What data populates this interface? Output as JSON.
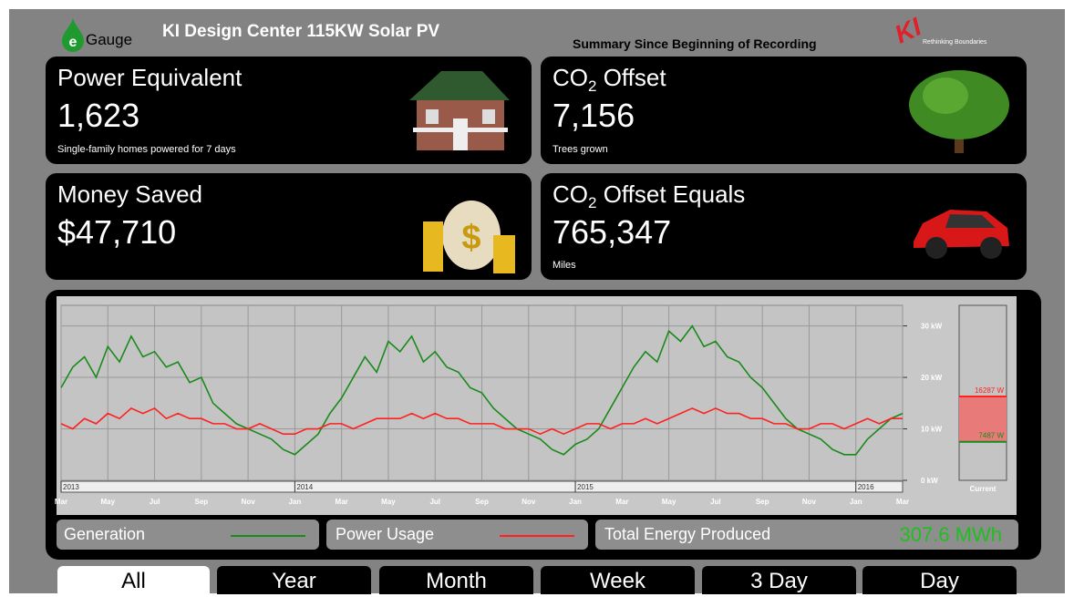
{
  "header": {
    "logo_letter": "e",
    "logo_text": "Gauge",
    "title": "KI Design Center 115KW Solar PV",
    "summary": "Summary Since Beginning of Recording",
    "brand": "KI",
    "brand_tagline": "Rethinking Boundaries"
  },
  "cards": [
    {
      "title": "Power Equivalent",
      "value": "1,623",
      "note": "Single-family homes powered for 7 days"
    },
    {
      "title": {
        "prefix": "CO",
        "sub": "2",
        "suffix": " Offset"
      },
      "value": "7,156",
      "note": "Trees grown"
    },
    {
      "title": "Money Saved",
      "value": "$47,710"
    },
    {
      "title": {
        "prefix": "CO",
        "sub": "2",
        "suffix": " Offset Equals"
      },
      "value": "765,347",
      "note": "Miles"
    }
  ],
  "chart_data": {
    "type": "line",
    "x_labels": [
      "Mar",
      "May",
      "Jul",
      "Sep",
      "Nov",
      "Jan",
      "Mar",
      "May",
      "Jul",
      "Sep",
      "Nov",
      "Jan",
      "Mar",
      "May",
      "Jul",
      "Sep",
      "Nov",
      "Jan",
      "Mar"
    ],
    "year_labels": [
      "2013",
      "2014",
      "2015",
      "2016"
    ],
    "series": [
      {
        "name": "Generation",
        "color": "#1a8a1a",
        "values": [
          18,
          22,
          24,
          20,
          26,
          23,
          28,
          24,
          25,
          22,
          23,
          19,
          20,
          15,
          13,
          11,
          10,
          9,
          8,
          6,
          5,
          7,
          9,
          13,
          16,
          20,
          24,
          21,
          27,
          25,
          28,
          23,
          25,
          22,
          21,
          18,
          17,
          14,
          12,
          10,
          9,
          8,
          6,
          5,
          7,
          8,
          10,
          14,
          18,
          22,
          25,
          23,
          29,
          27,
          30,
          26,
          27,
          24,
          23,
          20,
          18,
          15,
          12,
          10,
          9,
          8,
          6,
          5,
          5,
          8,
          10,
          12,
          13
        ]
      },
      {
        "name": "Power Usage",
        "color": "#ff2020",
        "values": [
          11,
          10,
          12,
          11,
          13,
          12,
          14,
          13,
          14,
          12,
          13,
          12,
          12,
          11,
          11,
          10,
          10,
          11,
          10,
          9,
          9,
          10,
          10,
          11,
          11,
          10,
          11,
          12,
          12,
          12,
          13,
          12,
          13,
          12,
          12,
          11,
          11,
          11,
          10,
          10,
          10,
          9,
          10,
          9,
          10,
          11,
          11,
          10,
          11,
          11,
          12,
          11,
          12,
          13,
          14,
          13,
          14,
          13,
          13,
          12,
          12,
          11,
          11,
          10,
          10,
          11,
          11,
          10,
          11,
          12,
          11,
          12,
          12
        ]
      }
    ],
    "ylim": [
      0,
      34
    ],
    "yticks": [
      {
        "value": 0,
        "label": "0 kW"
      },
      {
        "value": 10,
        "label": "10 kW"
      },
      {
        "value": 20,
        "label": "20 kW"
      },
      {
        "value": 30,
        "label": "30 kW"
      }
    ],
    "grid": true,
    "current": {
      "label": "Current",
      "values": [
        16.287,
        7.487
      ],
      "value_labels": [
        "16287 W",
        "7487 W"
      ]
    }
  },
  "summary_bar": {
    "label": "Total Energy Produced",
    "value": "307.6 MWh"
  },
  "buttons": [
    "All",
    "Year",
    "Month",
    "Week",
    "3 Day",
    "Day"
  ],
  "active_button": "All"
}
